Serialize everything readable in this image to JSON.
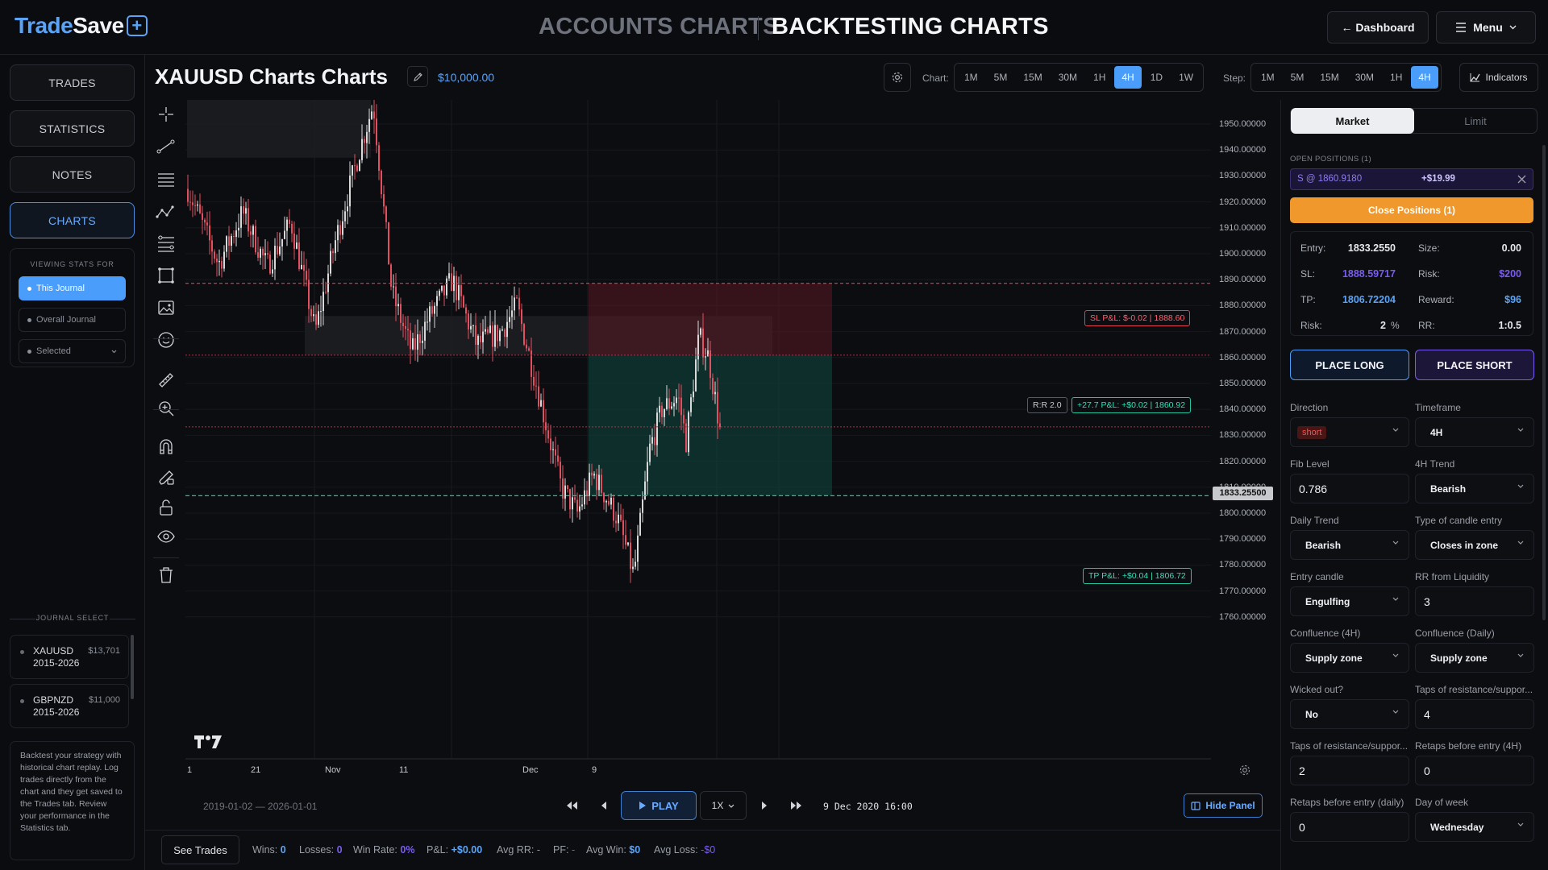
{
  "app": {
    "logo_trade": "Trade",
    "logo_save": "Save",
    "logo_plus": "+",
    "header_tabs": [
      {
        "label": "ACCOUNTS CHARTS",
        "active": false
      },
      {
        "label": "BACKTESTING CHARTS",
        "active": true
      }
    ],
    "dashboard_label": "← Dashboard",
    "menu_label": "Menu"
  },
  "sidebar": {
    "nav": [
      {
        "label": "TRADES",
        "active": false
      },
      {
        "label": "STATISTICS",
        "active": false
      },
      {
        "label": "NOTES",
        "active": false
      },
      {
        "label": "CHARTS",
        "active": true
      }
    ],
    "viewing_stats_title": "VIEWING STATS FOR",
    "viewing_options": [
      {
        "label": "This Journal",
        "active": true
      },
      {
        "label": "Overall Journal",
        "active": false
      },
      {
        "label": "Selected",
        "active": false
      }
    ],
    "journal_select_title": "JOURNAL SELECT",
    "journals": [
      {
        "name_line1": "XAUUSD",
        "name_line2": "2015-2026",
        "amount": "$13,701"
      },
      {
        "name_line1": "GBPNZD",
        "name_line2": "2015-2026",
        "amount": "$11,000"
      }
    ],
    "help_text": "Backtest your strategy with historical chart replay. Log trades directly from the chart and they get saved to the Trades tab. Review your performance in the Statistics tab."
  },
  "chart_header": {
    "title": "XAUUSD Charts Charts",
    "balance": "$10,000.00",
    "chart_label": "Chart:",
    "chart_timeframes": [
      "1M",
      "5M",
      "15M",
      "30M",
      "1H",
      "4H",
      "1D",
      "1W"
    ],
    "chart_active": "4H",
    "step_label": "Step:",
    "step_timeframes": [
      "1M",
      "5M",
      "15M",
      "30M",
      "1H",
      "4H"
    ],
    "step_active": "4H",
    "indicators_label": "Indicators"
  },
  "chart": {
    "y_ticks": [
      "1950.00000",
      "1940.00000",
      "1930.00000",
      "1920.00000",
      "1910.00000",
      "1900.00000",
      "1890.00000",
      "1880.00000",
      "1870.00000",
      "1860.00000",
      "1850.00000",
      "1840.00000",
      "1830.00000",
      "1820.00000",
      "1810.00000",
      "1800.00000",
      "1790.00000",
      "1780.00000",
      "1770.00000",
      "1760.00000"
    ],
    "x_ticks": [
      {
        "label": "1"
      },
      {
        "label": "21"
      },
      {
        "label": "Nov"
      },
      {
        "label": "11"
      },
      {
        "label": "Dec"
      },
      {
        "label": "9"
      }
    ],
    "current_price": "1833.25500",
    "sl_label": "SL  P&L: $-0.02  |  1888.60",
    "entry_rr_label": "R:R 2.0",
    "entry_label": "+27.7  P&L: +$0.02  |  1860.92",
    "tp_label": "TP  P&L: +$0.04  |  1806.72",
    "colors": {
      "up": "#d9d9d9",
      "down": "#e05060",
      "sl": "#e04050",
      "tp": "#20c4a0"
    }
  },
  "replay": {
    "date_range": "2019-01-02 — 2026-01-01",
    "play_label": "PLAY",
    "speed": "1X",
    "current_datetime": "9 Dec 2020 16:00",
    "hide_panel_label": "Hide Panel"
  },
  "stats": {
    "see_trades": "See Trades",
    "wins_label": "Wins:",
    "wins": "0",
    "losses_label": "Losses:",
    "losses": "0",
    "winrate_label": "Win Rate:",
    "winrate": "0%",
    "pnl_label": "P&L:",
    "pnl": "+$0.00",
    "avgrr_label": "Avg RR:",
    "avgrr": "-",
    "pf_label": "PF:",
    "pf": "-",
    "avgwin_label": "Avg Win:",
    "avgwin": "$0",
    "avgloss_label": "Avg Loss:",
    "avgloss": "-$0"
  },
  "panel": {
    "tabs": [
      {
        "label": "Market",
        "active": true
      },
      {
        "label": "Limit",
        "active": false
      }
    ],
    "open_positions_title": "OPEN POSITIONS (1)",
    "position": {
      "text": "S @ 1860.9180",
      "pnl": "+$19.99"
    },
    "close_positions": "Close Positions (1)",
    "order": {
      "entry_label": "Entry:",
      "entry": "1833.2550",
      "size_label": "Size:",
      "size": "0.00",
      "sl_label": "SL:",
      "sl": "1888.59717",
      "risk_label": "Risk:",
      "risk_amt": "$200",
      "tp_label": "TP:",
      "tp": "1806.72204",
      "reward_label": "Reward:",
      "reward": "$96",
      "riskpct_label": "Risk:",
      "riskpct": "2",
      "riskpct_unit": "%",
      "rr_label": "RR:",
      "rr": "1:0.5"
    },
    "place_long": "PLACE LONG",
    "place_short": "PLACE SHORT",
    "fields": [
      {
        "label": "Direction",
        "value": "short",
        "type": "badge"
      },
      {
        "label": "Timeframe",
        "value": "4H",
        "type": "select"
      },
      {
        "label": "Fib Level",
        "value": "0.786",
        "type": "input"
      },
      {
        "label": "4H Trend",
        "value": "Bearish",
        "type": "select"
      },
      {
        "label": "Daily Trend",
        "value": "Bearish",
        "type": "select"
      },
      {
        "label": "Type of candle entry",
        "value": "Closes in zone",
        "type": "select"
      },
      {
        "label": "Entry candle",
        "value": "Engulfing",
        "type": "select"
      },
      {
        "label": "RR from Liquidity",
        "value": "3",
        "type": "input"
      },
      {
        "label": "Confluence (4H)",
        "value": "Supply zone",
        "type": "select"
      },
      {
        "label": "Confluence (Daily)",
        "value": "Supply zone",
        "type": "select"
      },
      {
        "label": "Wicked out?",
        "value": "No",
        "type": "select"
      },
      {
        "label": "Taps of resistance/suppor...",
        "value": "4",
        "type": "input"
      },
      {
        "label": "Taps of resistance/suppor...",
        "value": "2",
        "type": "input"
      },
      {
        "label": "Retaps before entry (4H)",
        "value": "0",
        "type": "input"
      },
      {
        "label": "Retaps before entry (daily)",
        "value": "0",
        "type": "input"
      },
      {
        "label": "Day of week",
        "value": "Wednesday",
        "type": "select"
      }
    ]
  }
}
